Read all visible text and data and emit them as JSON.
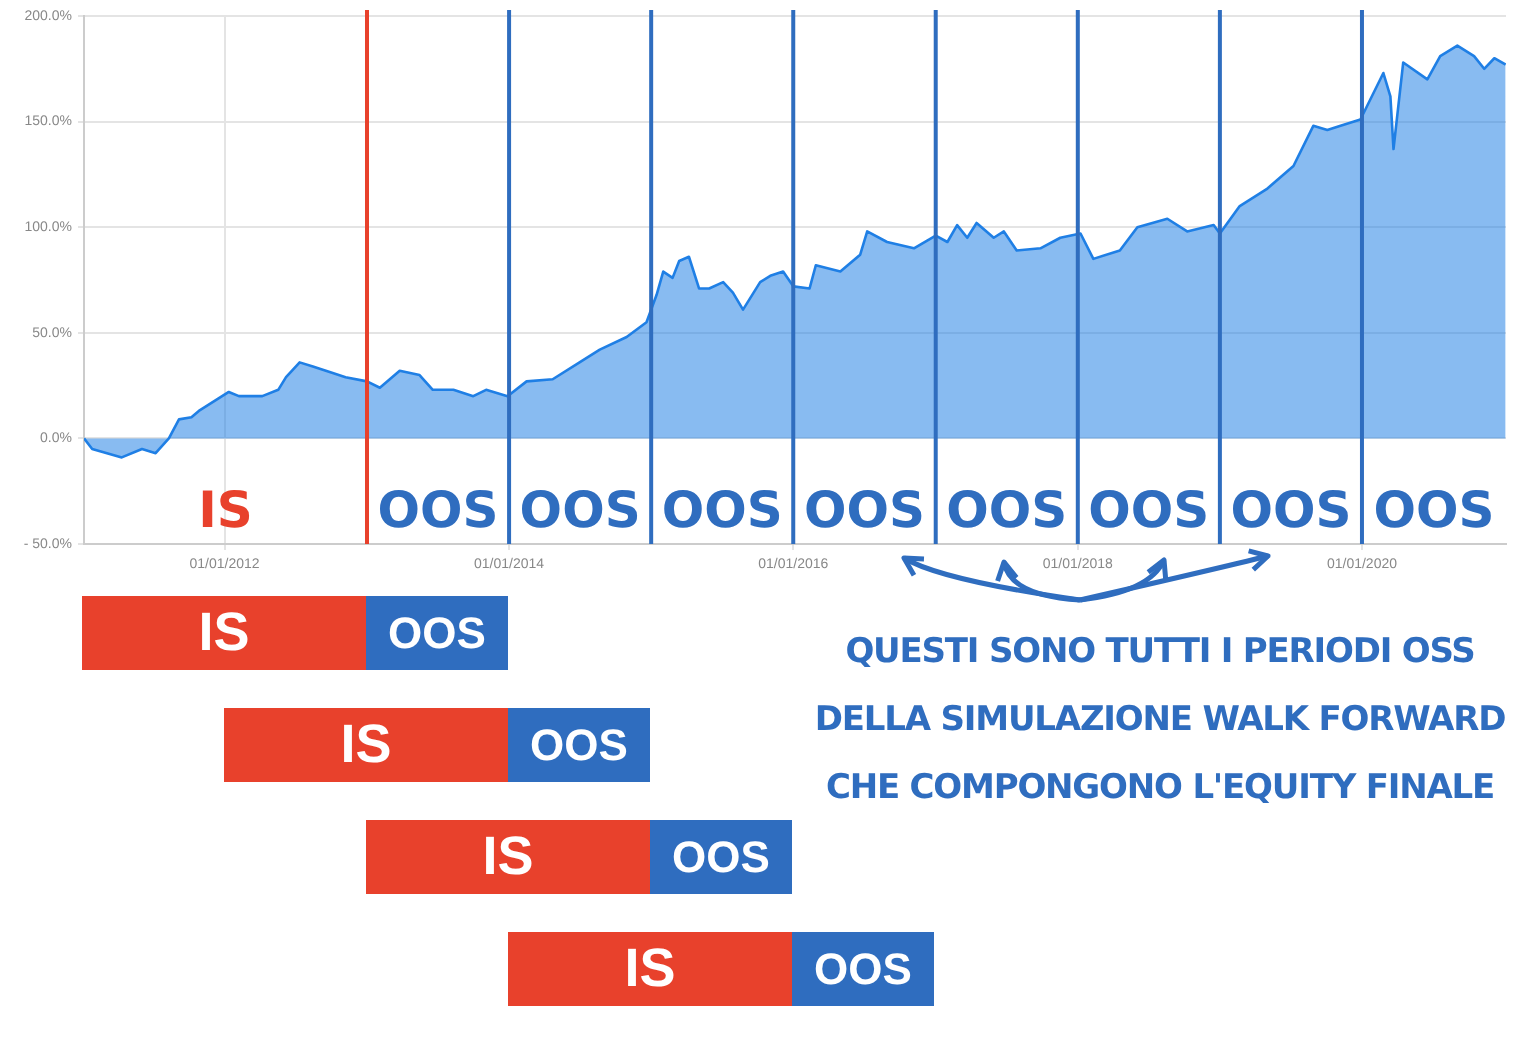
{
  "chart_data": [
    {
      "type": "area",
      "x": [
        "2011-01-05",
        "2011-01-26",
        "2011-04-12",
        "2011-06-03",
        "2011-07-08",
        "2011-08-11",
        "2011-09-06",
        "2011-10-08",
        "2011-10-27",
        "2012-01-12",
        "2012-02-07",
        "2012-04-07",
        "2012-05-18",
        "2012-06-07",
        "2012-07-12",
        "2012-08-15",
        "2012-10-05",
        "2012-11-07",
        "2013-01-01",
        "2013-02-03",
        "2013-03-26",
        "2013-05-16",
        "2013-06-19",
        "2013-08-11",
        "2013-10-01",
        "2013-11-03",
        "2013-12-28",
        "2014-02-15",
        "2014-04-23",
        "2014-07-01",
        "2014-08-22",
        "2014-10-30",
        "2014-12-20",
        "2015-01-15",
        "2015-02-01",
        "2015-02-25",
        "2015-03-14",
        "2015-04-08",
        "2015-05-04",
        "2015-05-30",
        "2015-07-05",
        "2015-07-30",
        "2015-08-25",
        "2015-10-08",
        "2015-11-03",
        "2015-12-06",
        "2016-01-01",
        "2016-02-12",
        "2016-02-28",
        "2016-05-01",
        "2016-06-21",
        "2016-07-09",
        "2016-08-29",
        "2016-11-06",
        "2017-01-01",
        "2017-01-31",
        "2017-02-25",
        "2017-03-23",
        "2017-04-16",
        "2017-05-30",
        "2017-06-25",
        "2017-07-28",
        "2017-09-27",
        "2017-11-17",
        "2018-01-08",
        "2018-02-10",
        "2018-04-19",
        "2018-06-03",
        "2018-08-19",
        "2018-10-09",
        "2018-12-16",
        "2019-01-01",
        "2019-02-21",
        "2019-05-01",
        "2019-07-09",
        "2019-08-29",
        "2019-10-04",
        "2019-11-07",
        "2019-12-28",
        "2020-02-25",
        "2020-03-14",
        "2020-03-22",
        "2020-04-16",
        "2020-06-17",
        "2020-07-20",
        "2020-09-02",
        "2020-10-15",
        "2020-11-10",
        "2020-12-06",
        "2021-01-04"
      ],
      "series": [
        {
          "color": "#1f7fe5",
          "values": [
            0,
            -5,
            -9,
            -5,
            -7,
            0,
            9,
            10,
            13,
            22,
            20,
            20,
            23,
            29,
            36,
            34,
            31,
            29,
            27,
            24,
            32,
            30,
            23,
            23,
            20,
            23,
            20,
            27,
            28,
            36,
            42,
            48,
            55,
            68,
            79,
            76,
            84,
            86,
            71,
            71,
            74,
            69,
            61,
            74,
            77,
            79,
            72,
            71,
            82,
            79,
            87,
            98,
            93,
            90,
            96,
            93,
            101,
            95,
            102,
            95,
            98,
            89,
            90,
            95,
            97,
            85,
            89,
            100,
            104,
            98,
            101,
            97,
            110,
            118,
            129,
            148,
            146,
            148,
            151,
            173,
            162,
            137,
            178,
            170,
            181,
            186,
            181,
            175,
            180,
            177
          ]
        }
      ],
      "xlim": [
        "2011-01-05",
        "2021-01-05"
      ],
      "xticks": [
        {
          "value": "2012-01-01",
          "label": "01/01/2012"
        },
        {
          "value": "2014-01-01",
          "label": "01/01/2014"
        },
        {
          "value": "2016-01-01",
          "label": "01/01/2016"
        },
        {
          "value": "2018-01-01",
          "label": "01/01/2018"
        },
        {
          "value": "2020-01-01",
          "label": "01/01/2020"
        }
      ],
      "ylim": [
        -50,
        200
      ],
      "yticks": [
        {
          "value": -50,
          "label": "- 50.0%"
        },
        {
          "value": 0,
          "label": "0.0%"
        },
        {
          "value": 50,
          "label": "50.0%"
        },
        {
          "value": 100,
          "label": "100.0%"
        },
        {
          "value": 150,
          "label": "150.0%"
        },
        {
          "value": 200,
          "label": "200.0%"
        }
      ],
      "grid": true,
      "ref_lines": [
        {
          "axis": "x",
          "value": "2013-01-01",
          "color": "#e8412c"
        },
        {
          "axis": "x",
          "value": "2014-01-01",
          "color": "#2f6dbf"
        },
        {
          "axis": "x",
          "value": "2015-01-01",
          "color": "#2f6dbf"
        },
        {
          "axis": "x",
          "value": "2016-01-01",
          "color": "#2f6dbf"
        },
        {
          "axis": "x",
          "value": "2017-01-01",
          "color": "#2f6dbf"
        },
        {
          "axis": "x",
          "value": "2018-01-01",
          "color": "#2f6dbf"
        },
        {
          "axis": "x",
          "value": "2019-01-01",
          "color": "#2f6dbf"
        },
        {
          "axis": "x",
          "value": "2020-01-01",
          "color": "#2f6dbf"
        }
      ],
      "annotations": [
        "IS",
        "OOS",
        "OOS",
        "OOS",
        "OOS",
        "OOS",
        "OOS",
        "OOS",
        "OOS"
      ]
    },
    {
      "type": "other",
      "annotations": [
        "IS",
        "OOS",
        "IS",
        "OOS",
        "IS",
        "OOS",
        "IS",
        "OOS",
        "QUESTI SONO TUTTI I PERIODI OSS",
        "DELLA SIMULAZIONE WALK FORWARD",
        "CHE COMPONGONO L'EQUITY FINALE"
      ]
    }
  ]
}
